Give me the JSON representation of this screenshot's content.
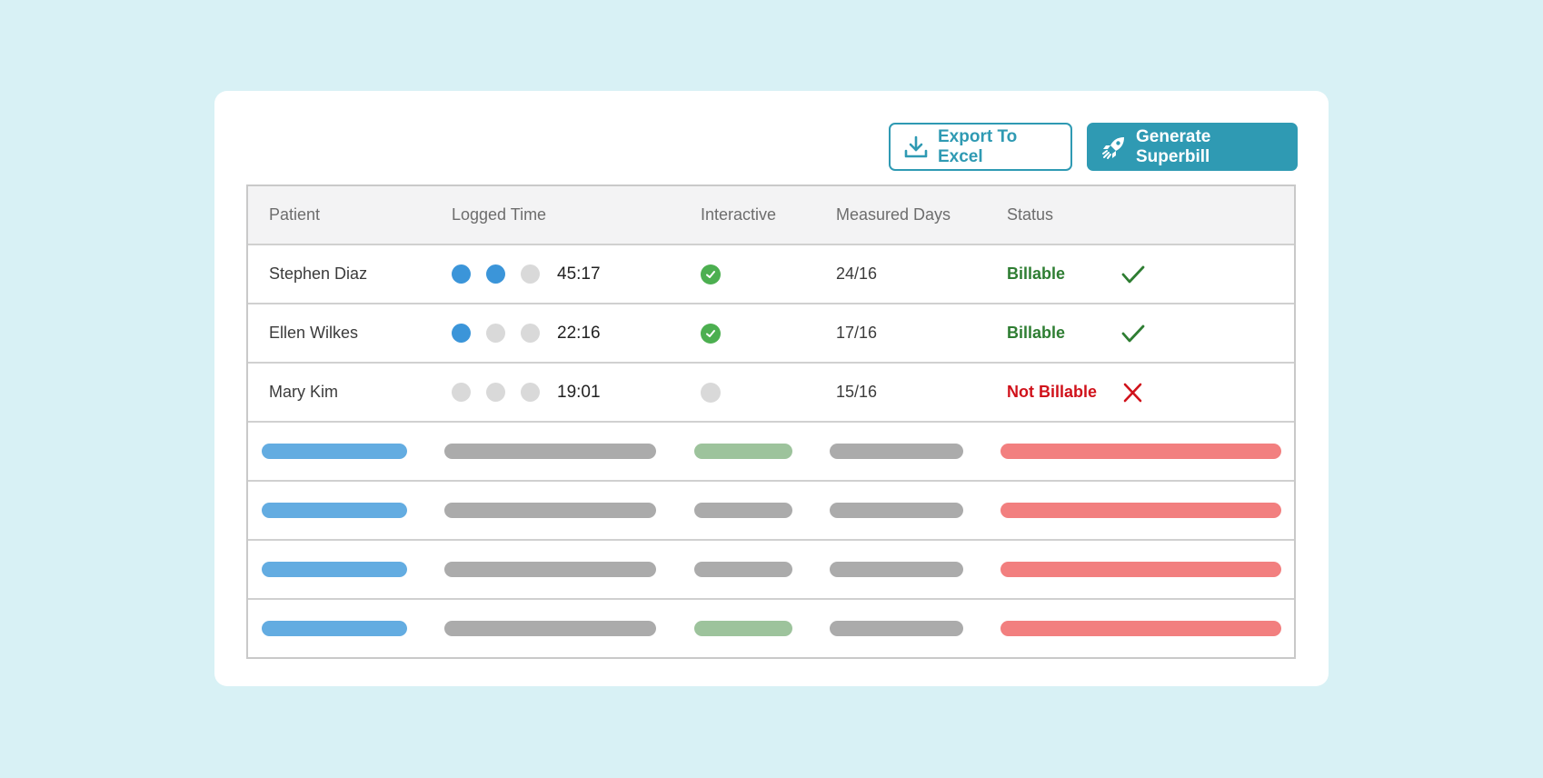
{
  "toolbar": {
    "export_label": "Export To Excel",
    "superbill_label": "Generate Superbill"
  },
  "table": {
    "headers": {
      "patient": "Patient",
      "logged_time": "Logged Time",
      "interactive": "Interactive",
      "measured_days": "Measured Days",
      "status": "Status"
    },
    "rows": [
      {
        "patient": "Stephen Diaz",
        "time_dots_filled": 2,
        "time_dots_total": 3,
        "time": "45:17",
        "interactive": true,
        "measured_days": "24/16",
        "status": "Billable",
        "billable": true
      },
      {
        "patient": "Ellen Wilkes",
        "time_dots_filled": 1,
        "time_dots_total": 3,
        "time": "22:16",
        "interactive": true,
        "measured_days": "17/16",
        "status": "Billable",
        "billable": true
      },
      {
        "patient": "Mary Kim",
        "time_dots_filled": 0,
        "time_dots_total": 3,
        "time": "19:01",
        "interactive": false,
        "measured_days": "15/16",
        "status": "Not Billable",
        "billable": false
      }
    ],
    "placeholder_rows": [
      {
        "interactive_green": true
      },
      {
        "interactive_green": false
      },
      {
        "interactive_green": false
      },
      {
        "interactive_green": true
      }
    ]
  },
  "colors": {
    "accent": "#2f9ab3",
    "dot_on": "#3b95d9",
    "dot_off": "#d9d9d9",
    "billable": "#2e7d32",
    "not_billable": "#d0121b",
    "placeholder_patient": "#63ace1",
    "placeholder_gray": "#ababab",
    "placeholder_green": "#9dc39c",
    "placeholder_status": "#f27f7f"
  },
  "icons": {
    "export": "download-icon",
    "superbill": "rocket-icon",
    "interactive_yes": "check-circle-icon",
    "interactive_no": "empty-circle-icon",
    "billable": "checkmark-icon",
    "not_billable": "x-mark-icon"
  }
}
